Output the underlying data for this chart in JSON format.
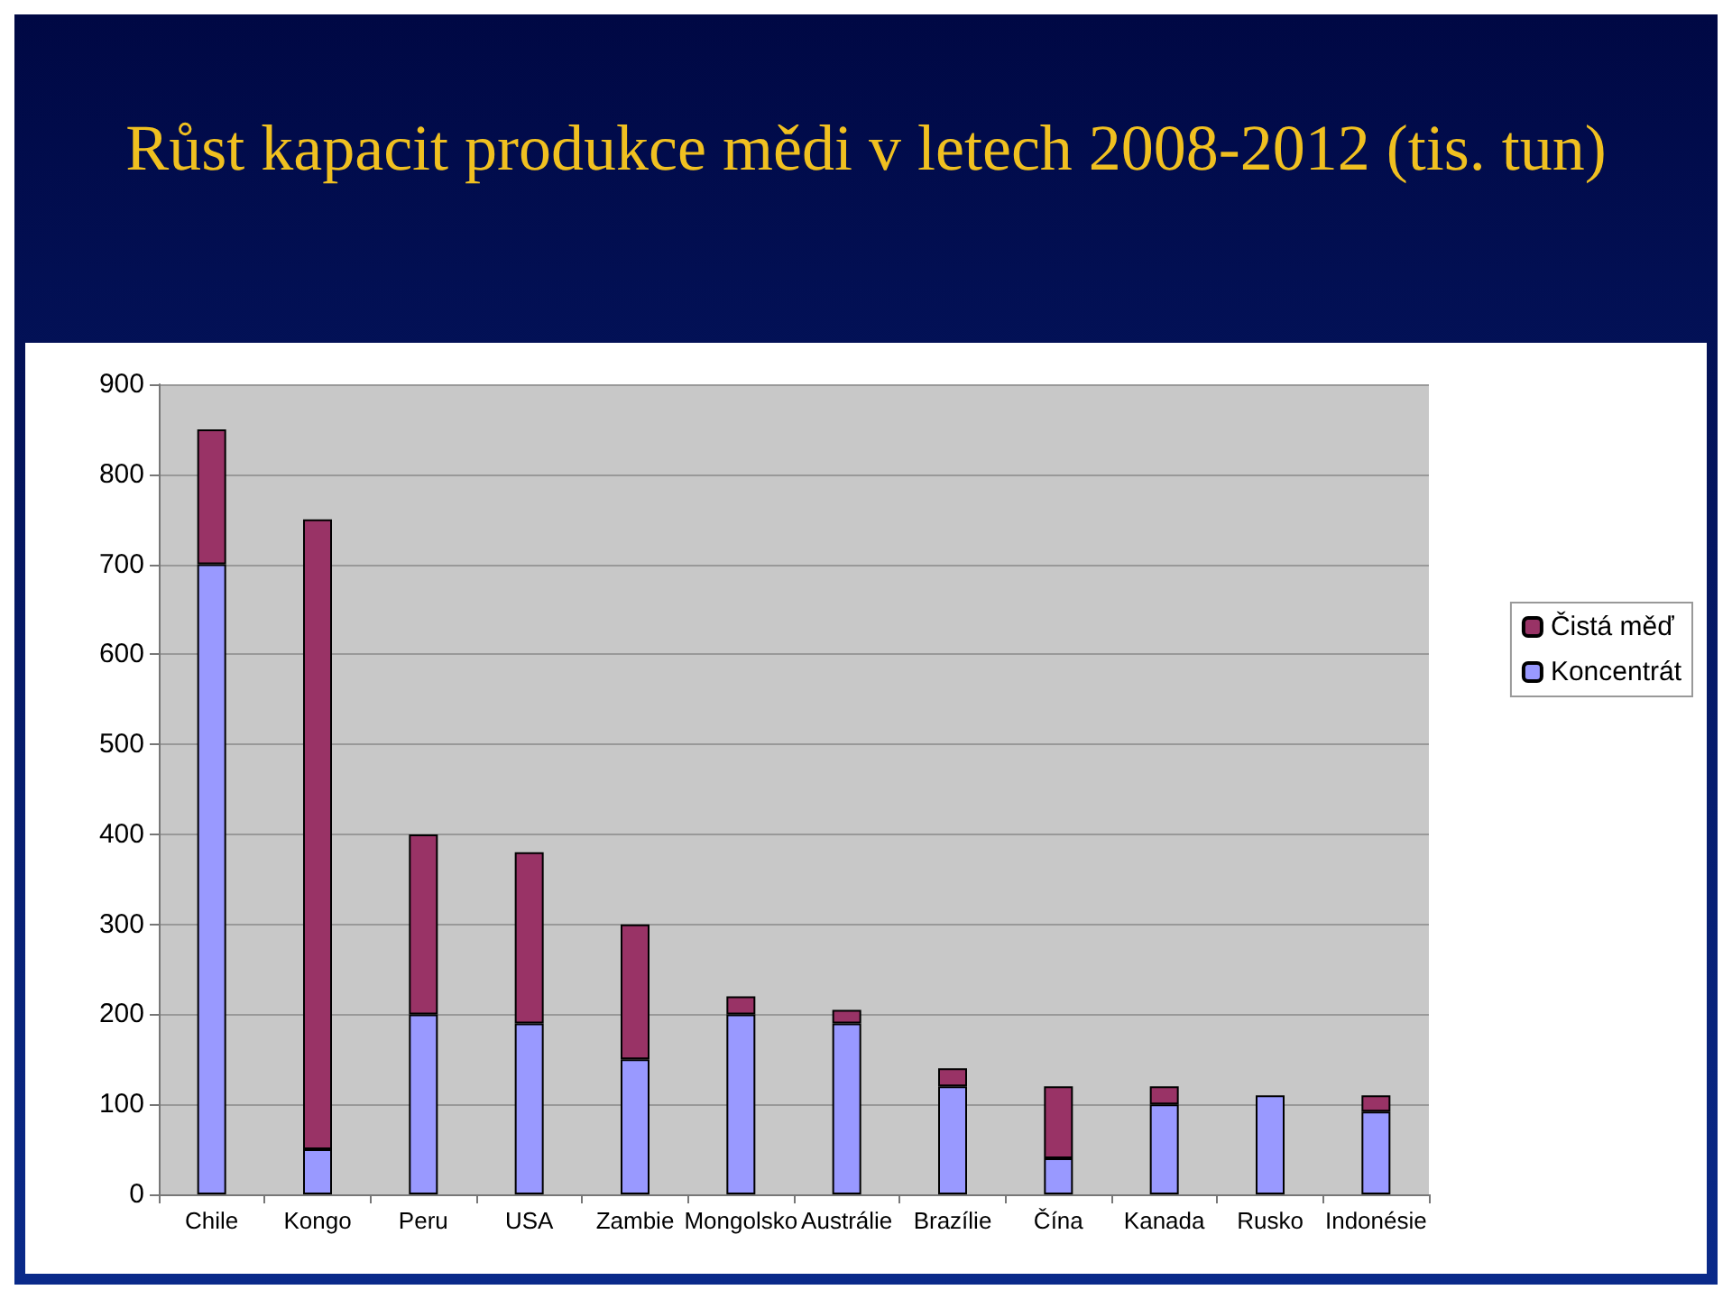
{
  "chart_data": {
    "type": "bar",
    "title": "Růst kapacit produkce mědi v letech 2008-2012 (tis. tun)",
    "categories": [
      "Chile",
      "Kongo",
      "Peru",
      "USA",
      "Zambie",
      "Mongolsko",
      "Austrálie",
      "Brazílie",
      "Čína",
      "Kanada",
      "Rusko",
      "Indonésie"
    ],
    "series": [
      {
        "name": "Koncentrát",
        "color": "#9999ff",
        "values": [
          700,
          50,
          200,
          190,
          150,
          200,
          190,
          120,
          40,
          100,
          110,
          92
        ]
      },
      {
        "name": "Čistá měď",
        "color": "#993366",
        "values": [
          150,
          700,
          200,
          190,
          150,
          20,
          15,
          20,
          80,
          20,
          null,
          18
        ]
      }
    ],
    "stacked": true,
    "ylim": [
      0,
      900
    ],
    "yticks": [
      0,
      100,
      200,
      300,
      400,
      500,
      600,
      700,
      800,
      900
    ],
    "grid": "y",
    "legend": "right"
  }
}
